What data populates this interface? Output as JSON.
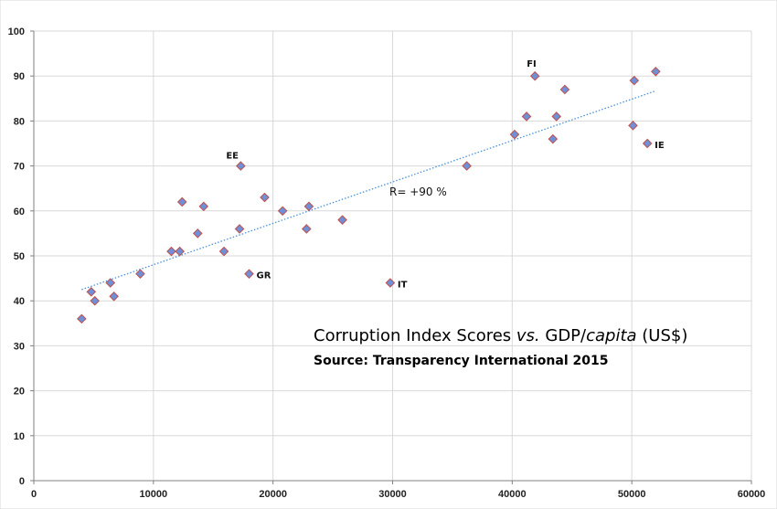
{
  "chart_data": {
    "type": "scatter",
    "title_parts": [
      {
        "text": "Corruption Index Scores ",
        "italic": false
      },
      {
        "text": "vs.",
        "italic": true
      },
      {
        "text": " GDP/",
        "italic": false
      },
      {
        "text": "capita",
        "italic": true
      },
      {
        "text": " (US$)",
        "italic": false
      }
    ],
    "subtitle": "Source: Transparency International 2015",
    "xlim": [
      0,
      60000
    ],
    "ylim": [
      0,
      100
    ],
    "x_ticks": [
      0,
      10000,
      20000,
      30000,
      40000,
      50000,
      60000
    ],
    "y_ticks": [
      0,
      10,
      20,
      30,
      40,
      50,
      60,
      70,
      80,
      90,
      100
    ],
    "grid": true,
    "marker": {
      "shape": "diamond",
      "fill": "#6f8fd6",
      "stroke": "#c0504d"
    },
    "trendline": {
      "from": [
        4000,
        42.5
      ],
      "to": [
        52000,
        86.7
      ],
      "color": "#4a90d9",
      "style": "dotted",
      "label": "R= +90 %"
    },
    "points": [
      {
        "x": 4000,
        "y": 36
      },
      {
        "x": 4800,
        "y": 42
      },
      {
        "x": 5100,
        "y": 40
      },
      {
        "x": 6400,
        "y": 44
      },
      {
        "x": 6700,
        "y": 41
      },
      {
        "x": 8900,
        "y": 46
      },
      {
        "x": 11500,
        "y": 51
      },
      {
        "x": 12200,
        "y": 51
      },
      {
        "x": 12400,
        "y": 62
      },
      {
        "x": 13700,
        "y": 55
      },
      {
        "x": 14200,
        "y": 61
      },
      {
        "x": 15900,
        "y": 51
      },
      {
        "x": 17200,
        "y": 56
      },
      {
        "x": 17300,
        "y": 70,
        "label": "EE"
      },
      {
        "x": 18000,
        "y": 46,
        "label": "GR"
      },
      {
        "x": 19300,
        "y": 63
      },
      {
        "x": 20800,
        "y": 60
      },
      {
        "x": 22800,
        "y": 56
      },
      {
        "x": 23000,
        "y": 61
      },
      {
        "x": 25800,
        "y": 58
      },
      {
        "x": 29800,
        "y": 44,
        "label": "IT"
      },
      {
        "x": 36200,
        "y": 70
      },
      {
        "x": 40200,
        "y": 77
      },
      {
        "x": 41200,
        "y": 81
      },
      {
        "x": 41900,
        "y": 90,
        "label": "FI"
      },
      {
        "x": 43400,
        "y": 76
      },
      {
        "x": 43700,
        "y": 81
      },
      {
        "x": 44400,
        "y": 87
      },
      {
        "x": 50100,
        "y": 79
      },
      {
        "x": 50200,
        "y": 89
      },
      {
        "x": 51300,
        "y": 75,
        "label": "IE"
      },
      {
        "x": 52000,
        "y": 91
      }
    ]
  }
}
